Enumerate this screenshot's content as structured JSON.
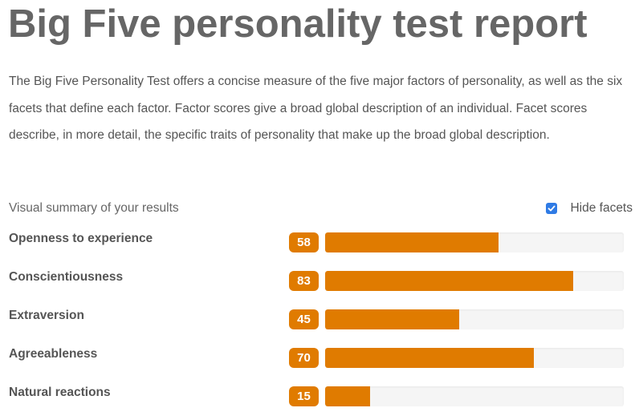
{
  "title": "Big Five personality test report",
  "intro": "The Big Five Personality Test offers a concise measure of the five major factors of personality, as well as the six facets that define each factor. Factor scores give a broad global description of an individual. Facet scores describe, in more detail, the specific traits of personality that make up the broad global description.",
  "summary_label": "Visual summary of your results",
  "hide_facets": {
    "label": "Hide facets",
    "checked": true
  },
  "colors": {
    "accent": "#e07b00",
    "track": "#f5f5f5",
    "checkbox": "#2f7be5"
  },
  "factors": [
    {
      "name": "Openness to experience",
      "score": 58
    },
    {
      "name": "Conscientiousness",
      "score": 83
    },
    {
      "name": "Extraversion",
      "score": 45
    },
    {
      "name": "Agreeableness",
      "score": 70
    },
    {
      "name": "Natural reactions",
      "score": 15
    }
  ]
}
